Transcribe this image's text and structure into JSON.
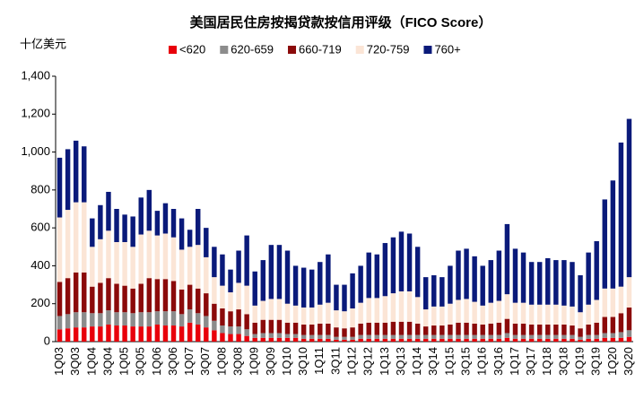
{
  "chart_data": {
    "type": "stacked_bar",
    "title": "美国居民住房按揭贷款按信用评级（FICO Score）",
    "y_label": "十亿美元",
    "categories": [
      "1Q03",
      null,
      "3Q03",
      null,
      "1Q04",
      null,
      "3Q04",
      null,
      "1Q05",
      null,
      "3Q05",
      null,
      "1Q06",
      null,
      "3Q06",
      null,
      "1Q07",
      null,
      "3Q07",
      null,
      "1Q08",
      null,
      "3Q08",
      null,
      "1Q09",
      null,
      "3Q09",
      null,
      "1Q10",
      null,
      "3Q10",
      null,
      "1Q11",
      null,
      "3Q11",
      null,
      "1Q12",
      null,
      "3Q12",
      null,
      "1Q13",
      null,
      "3Q13",
      null,
      "1Q14",
      null,
      "3Q14",
      null,
      "1Q15",
      null,
      "3Q15",
      null,
      "1Q16",
      null,
      "3Q16",
      null,
      "1Q17",
      null,
      "3Q17",
      null,
      "1Q18",
      null,
      "3Q18",
      null,
      "1Q19",
      null,
      "3Q19",
      null,
      "1Q20",
      null,
      "3Q20"
    ],
    "series": [
      {
        "name": "<620",
        "color": "#e8000b",
        "values": [
          65,
          70,
          75,
          75,
          80,
          80,
          90,
          85,
          85,
          80,
          80,
          80,
          90,
          85,
          85,
          80,
          100,
          90,
          75,
          60,
          45,
          40,
          40,
          30,
          20,
          20,
          20,
          20,
          20,
          20,
          15,
          15,
          15,
          15,
          10,
          10,
          10,
          15,
          15,
          15,
          15,
          15,
          15,
          15,
          15,
          15,
          15,
          15,
          15,
          15,
          15,
          15,
          15,
          15,
          15,
          20,
          15,
          15,
          15,
          15,
          15,
          15,
          15,
          15,
          10,
          15,
          15,
          20,
          20,
          20,
          25
        ]
      },
      {
        "name": "620-659",
        "color": "#8c8c8c",
        "values": [
          70,
          75,
          80,
          80,
          70,
          70,
          75,
          70,
          70,
          70,
          75,
          75,
          70,
          75,
          75,
          65,
          70,
          60,
          60,
          50,
          40,
          40,
          40,
          35,
          20,
          25,
          25,
          25,
          20,
          20,
          20,
          20,
          20,
          20,
          15,
          15,
          15,
          20,
          20,
          20,
          20,
          20,
          20,
          20,
          20,
          20,
          20,
          20,
          20,
          20,
          20,
          20,
          20,
          20,
          20,
          25,
          20,
          20,
          20,
          20,
          20,
          20,
          20,
          20,
          15,
          20,
          20,
          25,
          25,
          30,
          35
        ]
      },
      {
        "name": "660-719",
        "color": "#8b0a0a",
        "values": [
          180,
          190,
          210,
          210,
          140,
          160,
          170,
          150,
          140,
          130,
          150,
          180,
          170,
          170,
          160,
          130,
          130,
          130,
          120,
          90,
          90,
          80,
          90,
          80,
          60,
          70,
          70,
          70,
          60,
          60,
          55,
          55,
          60,
          60,
          50,
          45,
          50,
          60,
          65,
          65,
          65,
          70,
          70,
          70,
          60,
          45,
          50,
          50,
          55,
          65,
          65,
          60,
          55,
          60,
          65,
          75,
          60,
          60,
          55,
          55,
          55,
          55,
          55,
          50,
          45,
          55,
          65,
          85,
          85,
          100,
          120
        ]
      },
      {
        "name": "720-759",
        "color": "#fbe5d6",
        "values": [
          340,
          360,
          370,
          370,
          210,
          230,
          250,
          220,
          230,
          220,
          260,
          250,
          230,
          240,
          230,
          210,
          200,
          230,
          190,
          140,
          120,
          100,
          140,
          150,
          90,
          100,
          110,
          110,
          100,
          90,
          90,
          90,
          100,
          110,
          90,
          90,
          100,
          110,
          130,
          130,
          140,
          150,
          160,
          160,
          140,
          90,
          100,
          100,
          110,
          120,
          125,
          115,
          100,
          110,
          115,
          130,
          110,
          110,
          105,
          105,
          105,
          105,
          100,
          100,
          85,
          105,
          120,
          150,
          150,
          140,
          160
        ]
      },
      {
        "name": "760+",
        "color": "#0a1a7a",
        "values": [
          315,
          320,
          325,
          295,
          150,
          180,
          205,
          175,
          145,
          160,
          195,
          215,
          130,
          160,
          150,
          165,
          90,
          190,
          155,
          160,
          165,
          120,
          170,
          265,
          180,
          215,
          285,
          285,
          280,
          210,
          210,
          200,
          225,
          255,
          135,
          140,
          185,
          195,
          240,
          230,
          280,
          295,
          315,
          305,
          265,
          170,
          165,
          155,
          200,
          260,
          265,
          240,
          210,
          225,
          265,
          370,
          285,
          265,
          225,
          225,
          245,
          235,
          240,
          235,
          195,
          275,
          310,
          470,
          570,
          760,
          835
        ]
      }
    ],
    "ylim": [
      0,
      1400
    ],
    "yticks": [
      0,
      200,
      400,
      600,
      800,
      {
        "value": 1000,
        "label": "1,000"
      },
      {
        "value": 1200,
        "label": "1,200"
      },
      {
        "value": 1400,
        "label": "1,400"
      }
    ]
  }
}
